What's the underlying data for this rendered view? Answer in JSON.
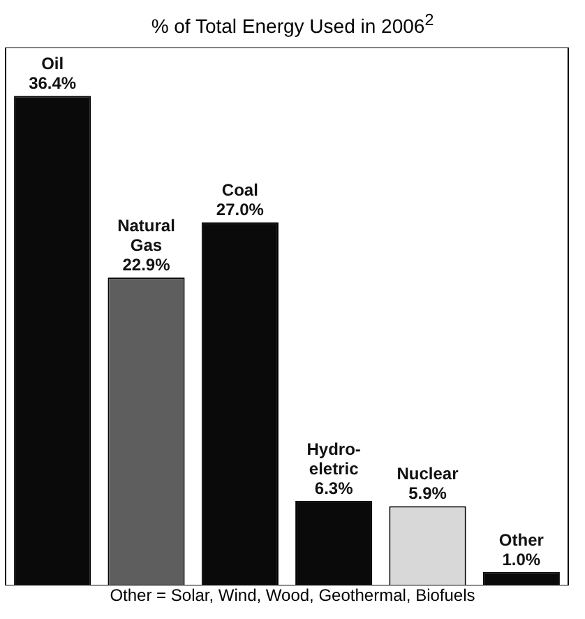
{
  "chart_data": {
    "type": "bar",
    "title": "% of Total Energy Used in 2006$^{2}$",
    "categories": [
      "Oil",
      "Natural Gas",
      "Coal",
      "Hydro-eletric",
      "Nuclear",
      "Other"
    ],
    "values": [
      36.4,
      22.9,
      27.0,
      6.3,
      5.9,
      1.0
    ],
    "value_labels": [
      "36.4%",
      "22.9%",
      "27.0%",
      "6.3%",
      "5.9%",
      "1.0%"
    ],
    "colors": [
      "#0a0a0a",
      "#5e5e5e",
      "#0a0a0a",
      "#0a0a0a",
      "#d8d8d8",
      "#0a0a0a"
    ],
    "ylim": [
      0,
      40
    ],
    "tick_labels": false,
    "grid": false,
    "legend": false,
    "annotations": [
      "Other = Solar, Wind, Wood, Geothermal, Biofuels"
    ]
  }
}
